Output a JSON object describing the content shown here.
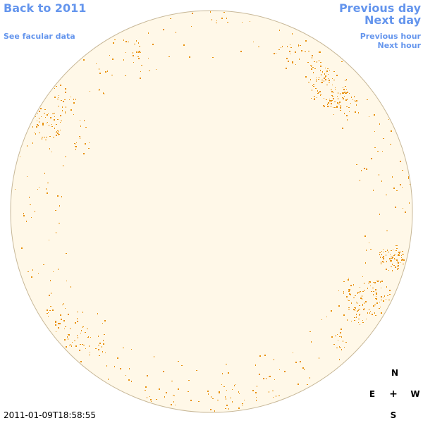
{
  "nav": {
    "back_label": "Back to 2011",
    "facular_label": "See facular data",
    "prev_day_label": "Previous day",
    "next_day_label": "Next day",
    "prev_hour_label": "Previous hour",
    "next_hour_label": "Next hour"
  },
  "timestamp": "2011-01-09T18:58:55",
  "compass": {
    "north": "N",
    "east": "E",
    "center": "+",
    "west": "W",
    "south": "S"
  },
  "colors": {
    "link": "#6495ed",
    "disk_fill": "#fff8e8",
    "disk_edge": "#c8b898",
    "facula": "#e8900a"
  }
}
